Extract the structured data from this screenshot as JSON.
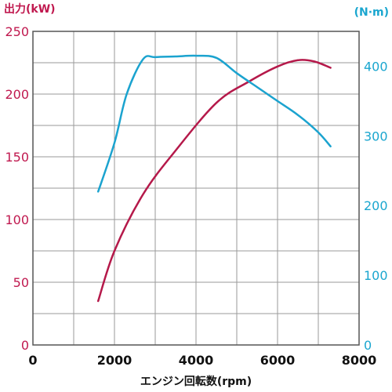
{
  "chart_data": {
    "type": "line",
    "y_left_label": "出力(kW)",
    "y_right_label": "(N·m)",
    "xlabel": "エンジン回転数(rpm)",
    "xlim": [
      0,
      8000
    ],
    "x_ticks": [
      "0",
      "2000",
      "4000",
      "6000",
      "8000"
    ],
    "ylim_left": [
      0,
      250
    ],
    "y_left_ticks": [
      "0",
      "50",
      "100",
      "150",
      "200",
      "250"
    ],
    "ylim_right": [
      0,
      450
    ],
    "y_right_ticks": [
      "0",
      "100",
      "200",
      "300",
      "400"
    ],
    "grid": true,
    "series": [
      {
        "axis": "left",
        "color": "#b5194a",
        "x": [
          1600,
          2000,
          2700,
          3500,
          4500,
          5300,
          6000,
          6500,
          6900,
          7300
        ],
        "y": [
          35,
          75,
          120,
          155,
          193,
          210,
          222,
          227,
          226,
          221
        ]
      },
      {
        "axis": "right",
        "color": "#1ba3cf",
        "x": [
          1600,
          2000,
          2300,
          2700,
          3000,
          3500,
          4000,
          4500,
          5000,
          5500,
          6000,
          6500,
          7000,
          7300
        ],
        "y": [
          220,
          290,
          360,
          410,
          413,
          414,
          415,
          412,
          390,
          370,
          350,
          330,
          305,
          285
        ]
      }
    ]
  }
}
